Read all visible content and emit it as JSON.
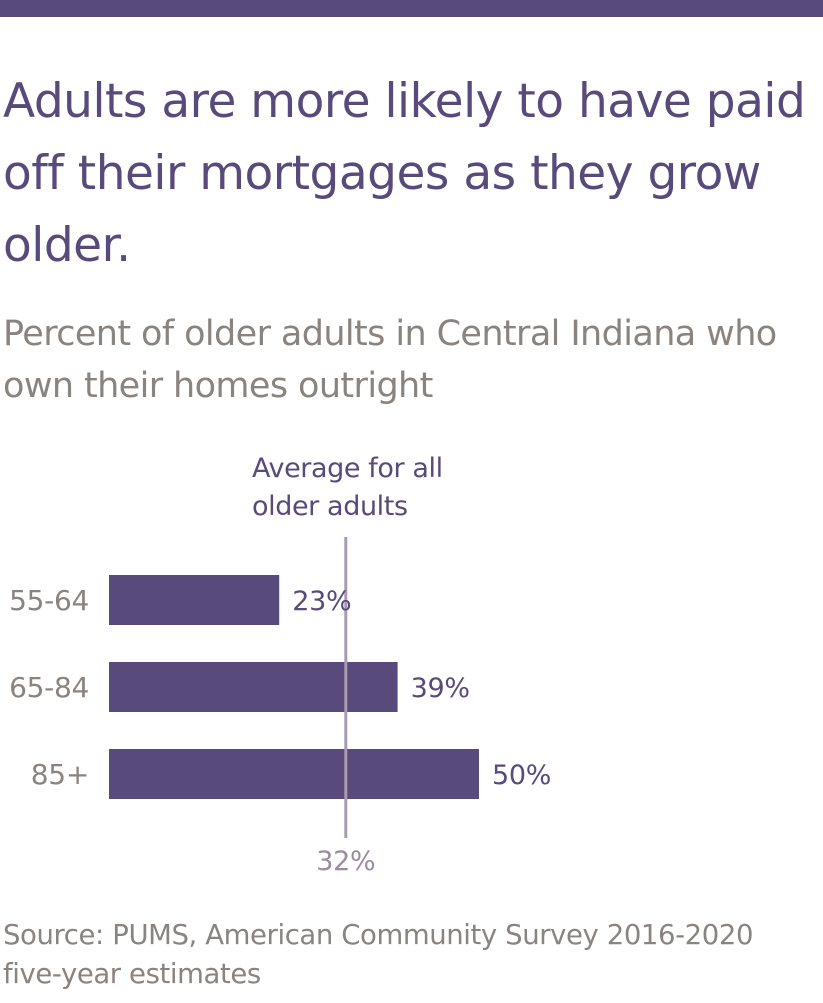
{
  "header": {
    "title": "Adults are more likely to have paid off their mortgages as they grow older.",
    "subtitle": "Percent of older adults in Central Indiana who own their homes outright"
  },
  "colors": {
    "accent": "#584a7a",
    "bar": "#584a7a",
    "reference_line": "#a99bb0",
    "reference_label": "#9a8c9c",
    "category_label": "#8a8480",
    "subtitle": "#8a8480",
    "source": "#8a8480"
  },
  "chart_data": {
    "type": "bar",
    "orientation": "horizontal",
    "categories": [
      "55-64",
      "65-84",
      "85+"
    ],
    "values": [
      23,
      39,
      50
    ],
    "value_labels": [
      "23%",
      "39%",
      "50%"
    ],
    "reference_line": {
      "value": 32,
      "value_label": "32%",
      "label_lines": [
        "Average for all",
        "older adults"
      ]
    },
    "title": "Adults are more likely to have paid off their mortgages as they grow older.",
    "subtitle": "Percent of older adults in Central Indiana who own their homes outright",
    "xlabel": "",
    "ylabel": "",
    "unit": "%",
    "grid": false,
    "legend": "none"
  },
  "source": {
    "text": "Source: PUMS, American Community Survey 2016-2020 five-year estimates"
  }
}
